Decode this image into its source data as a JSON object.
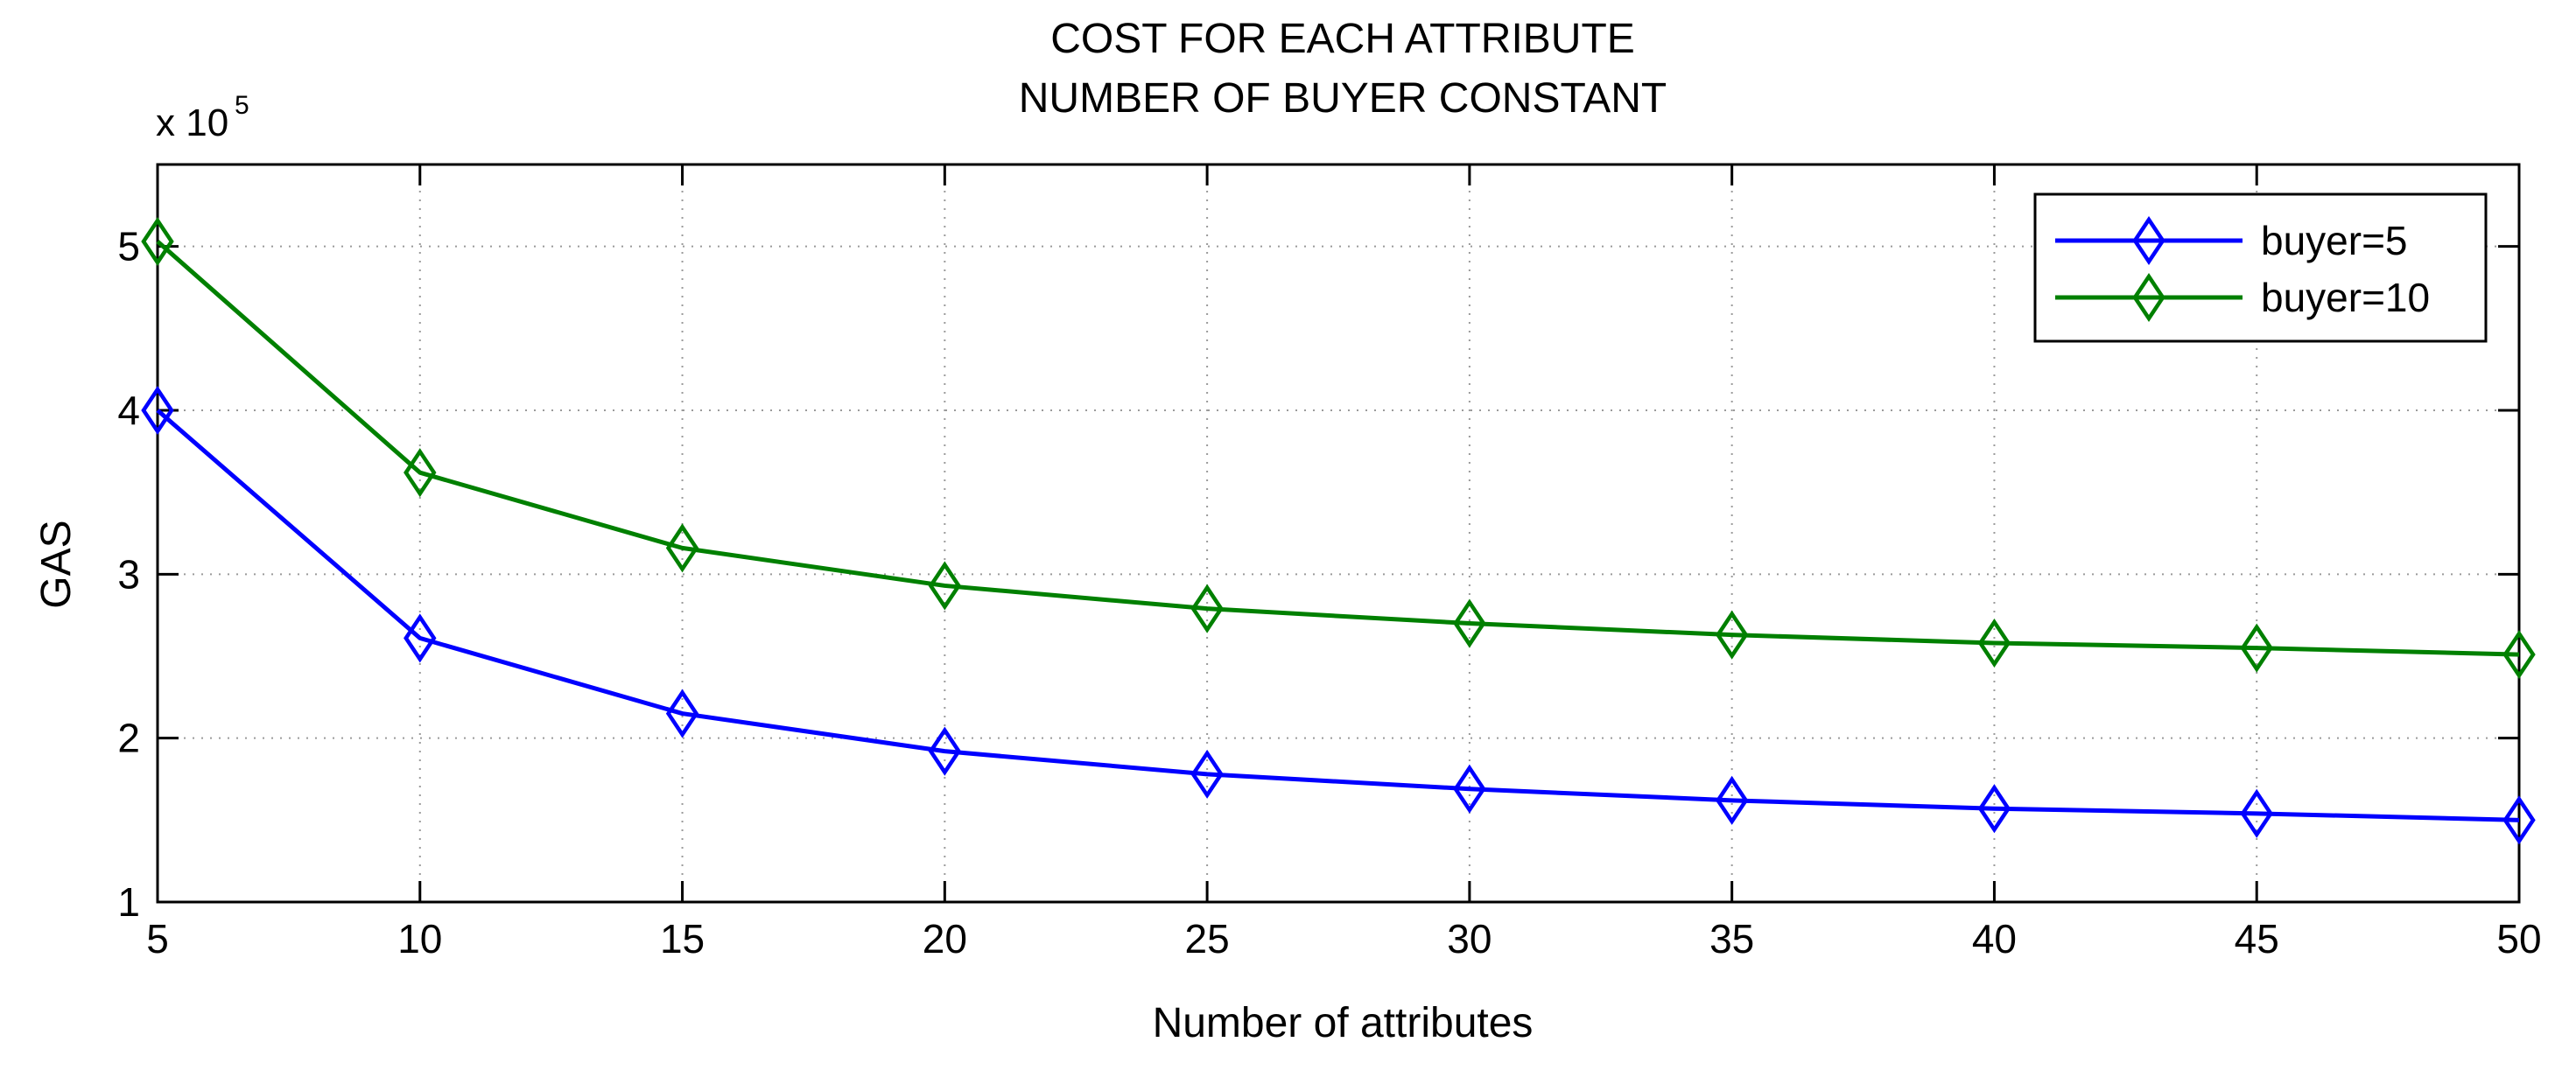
{
  "chart_data": {
    "type": "line",
    "title": "COST FOR EACH ATTRIBUTE",
    "subtitle": "NUMBER OF BUYER CONSTANT",
    "xlabel": "Number of attributes",
    "ylabel": "GAS",
    "y_multiplier": "x 10",
    "y_multiplier_exponent": "5",
    "x": [
      5,
      10,
      15,
      20,
      25,
      30,
      35,
      40,
      45,
      50
    ],
    "xlim": [
      5,
      50
    ],
    "ylim": [
      1,
      5.5
    ],
    "x_ticks": [
      5,
      10,
      15,
      20,
      25,
      30,
      35,
      40,
      45,
      50
    ],
    "y_ticks": [
      1,
      2,
      3,
      4,
      5
    ],
    "grid": true,
    "legend_position": "top-right",
    "marker": "diamond",
    "series": [
      {
        "name": "buyer=5",
        "color": "#0000ff",
        "values": [
          4.0,
          2.61,
          2.15,
          1.92,
          1.78,
          1.69,
          1.62,
          1.57,
          1.54,
          1.5
        ]
      },
      {
        "name": "buyer=10",
        "color": "#008000",
        "values": [
          5.03,
          3.62,
          3.16,
          2.93,
          2.79,
          2.7,
          2.63,
          2.58,
          2.55,
          2.51
        ]
      }
    ]
  }
}
